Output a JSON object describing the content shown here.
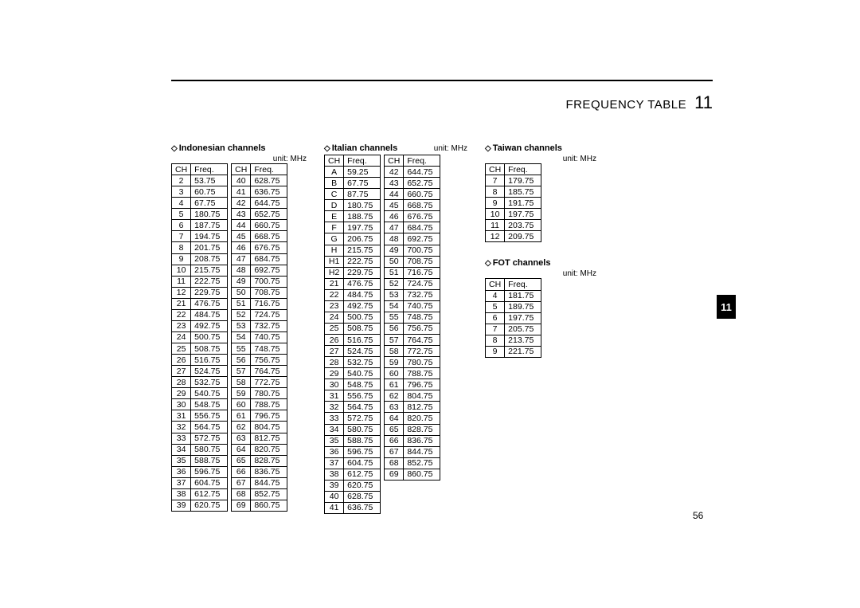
{
  "header": {
    "title": "FREQUENCY TABLE",
    "section_number": "11"
  },
  "side_tab": "11",
  "page_number": "56",
  "unit_label": "unit: MHz",
  "diamond": "◇",
  "column_headers": {
    "ch": "CH",
    "freq": "Freq."
  },
  "sections": {
    "indonesian": {
      "title": "Indonesian channels",
      "cols": [
        [
          [
            "2",
            "53.75"
          ],
          [
            "3",
            "60.75"
          ],
          [
            "4",
            "67.75"
          ],
          [
            "5",
            "180.75"
          ],
          [
            "6",
            "187.75"
          ],
          [
            "7",
            "194.75"
          ],
          [
            "8",
            "201.75"
          ],
          [
            "9",
            "208.75"
          ],
          [
            "10",
            "215.75"
          ],
          [
            "11",
            "222.75"
          ],
          [
            "12",
            "229.75"
          ],
          [
            "21",
            "476.75"
          ],
          [
            "22",
            "484.75"
          ],
          [
            "23",
            "492.75"
          ],
          [
            "24",
            "500.75"
          ],
          [
            "25",
            "508.75"
          ],
          [
            "26",
            "516.75"
          ],
          [
            "27",
            "524.75"
          ],
          [
            "28",
            "532.75"
          ],
          [
            "29",
            "540.75"
          ],
          [
            "30",
            "548.75"
          ],
          [
            "31",
            "556.75"
          ],
          [
            "32",
            "564.75"
          ],
          [
            "33",
            "572.75"
          ],
          [
            "34",
            "580.75"
          ],
          [
            "35",
            "588.75"
          ],
          [
            "36",
            "596.75"
          ],
          [
            "37",
            "604.75"
          ],
          [
            "38",
            "612.75"
          ],
          [
            "39",
            "620.75"
          ]
        ],
        [
          [
            "40",
            "628.75"
          ],
          [
            "41",
            "636.75"
          ],
          [
            "42",
            "644.75"
          ],
          [
            "43",
            "652.75"
          ],
          [
            "44",
            "660.75"
          ],
          [
            "45",
            "668.75"
          ],
          [
            "46",
            "676.75"
          ],
          [
            "47",
            "684.75"
          ],
          [
            "48",
            "692.75"
          ],
          [
            "49",
            "700.75"
          ],
          [
            "50",
            "708.75"
          ],
          [
            "51",
            "716.75"
          ],
          [
            "52",
            "724.75"
          ],
          [
            "53",
            "732.75"
          ],
          [
            "54",
            "740.75"
          ],
          [
            "55",
            "748.75"
          ],
          [
            "56",
            "756.75"
          ],
          [
            "57",
            "764.75"
          ],
          [
            "58",
            "772.75"
          ],
          [
            "59",
            "780.75"
          ],
          [
            "60",
            "788.75"
          ],
          [
            "61",
            "796.75"
          ],
          [
            "62",
            "804.75"
          ],
          [
            "63",
            "812.75"
          ],
          [
            "64",
            "820.75"
          ],
          [
            "65",
            "828.75"
          ],
          [
            "66",
            "836.75"
          ],
          [
            "67",
            "844.75"
          ],
          [
            "68",
            "852.75"
          ],
          [
            "69",
            "860.75"
          ]
        ]
      ]
    },
    "italian": {
      "title": "Italian channels",
      "cols": [
        [
          [
            "A",
            "59.25"
          ],
          [
            "B",
            "67.75"
          ],
          [
            "C",
            "87.75"
          ],
          [
            "D",
            "180.75"
          ],
          [
            "E",
            "188.75"
          ],
          [
            "F",
            "197.75"
          ],
          [
            "G",
            "206.75"
          ],
          [
            "H",
            "215.75"
          ],
          [
            "H1",
            "222.75"
          ],
          [
            "H2",
            "229.75"
          ],
          [
            "21",
            "476.75"
          ],
          [
            "22",
            "484.75"
          ],
          [
            "23",
            "492.75"
          ],
          [
            "24",
            "500.75"
          ],
          [
            "25",
            "508.75"
          ],
          [
            "26",
            "516.75"
          ],
          [
            "27",
            "524.75"
          ],
          [
            "28",
            "532.75"
          ],
          [
            "29",
            "540.75"
          ],
          [
            "30",
            "548.75"
          ],
          [
            "31",
            "556.75"
          ],
          [
            "32",
            "564.75"
          ],
          [
            "33",
            "572.75"
          ],
          [
            "34",
            "580.75"
          ],
          [
            "35",
            "588.75"
          ],
          [
            "36",
            "596.75"
          ],
          [
            "37",
            "604.75"
          ],
          [
            "38",
            "612.75"
          ],
          [
            "39",
            "620.75"
          ],
          [
            "40",
            "628.75"
          ],
          [
            "41",
            "636.75"
          ]
        ],
        [
          [
            "42",
            "644.75"
          ],
          [
            "43",
            "652.75"
          ],
          [
            "44",
            "660.75"
          ],
          [
            "45",
            "668.75"
          ],
          [
            "46",
            "676.75"
          ],
          [
            "47",
            "684.75"
          ],
          [
            "48",
            "692.75"
          ],
          [
            "49",
            "700.75"
          ],
          [
            "50",
            "708.75"
          ],
          [
            "51",
            "716.75"
          ],
          [
            "52",
            "724.75"
          ],
          [
            "53",
            "732.75"
          ],
          [
            "54",
            "740.75"
          ],
          [
            "55",
            "748.75"
          ],
          [
            "56",
            "756.75"
          ],
          [
            "57",
            "764.75"
          ],
          [
            "58",
            "772.75"
          ],
          [
            "59",
            "780.75"
          ],
          [
            "60",
            "788.75"
          ],
          [
            "61",
            "796.75"
          ],
          [
            "62",
            "804.75"
          ],
          [
            "63",
            "812.75"
          ],
          [
            "64",
            "820.75"
          ],
          [
            "65",
            "828.75"
          ],
          [
            "66",
            "836.75"
          ],
          [
            "67",
            "844.75"
          ],
          [
            "68",
            "852.75"
          ],
          [
            "69",
            "860.75"
          ]
        ]
      ]
    },
    "taiwan": {
      "title": "Taiwan channels",
      "cols": [
        [
          [
            "7",
            "179.75"
          ],
          [
            "8",
            "185.75"
          ],
          [
            "9",
            "191.75"
          ],
          [
            "10",
            "197.75"
          ],
          [
            "11",
            "203.75"
          ],
          [
            "12",
            "209.75"
          ]
        ]
      ]
    },
    "fot": {
      "title": "FOT channels",
      "cols": [
        [
          [
            "4",
            "181.75"
          ],
          [
            "5",
            "189.75"
          ],
          [
            "6",
            "197.75"
          ],
          [
            "7",
            "205.75"
          ],
          [
            "8",
            "213.75"
          ],
          [
            "9",
            "221.75"
          ]
        ]
      ]
    }
  }
}
